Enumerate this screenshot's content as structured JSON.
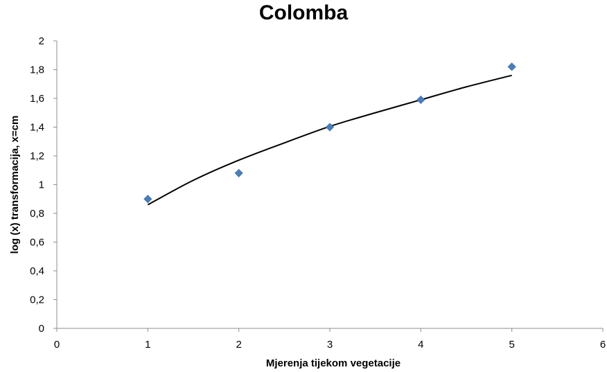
{
  "chart_data": {
    "type": "scatter",
    "title": "Colomba",
    "xlabel": "Mjerenja tijekom vegetacije",
    "ylabel": "log (x) transformacija, x=cm",
    "xlim": [
      0,
      6
    ],
    "ylim": [
      0,
      2
    ],
    "x_ticks": [
      "0",
      "1",
      "2",
      "3",
      "4",
      "5",
      "6"
    ],
    "y_ticks": [
      "0",
      "0,2",
      "0,4",
      "0,6",
      "0,8",
      "1",
      "1,2",
      "1,4",
      "1,6",
      "1,8",
      "2"
    ],
    "grid": false,
    "legend": "none",
    "series": [
      {
        "x": [
          1,
          2,
          3,
          4,
          5
        ],
        "y": [
          0.9,
          1.08,
          1.4,
          1.59,
          1.82
        ],
        "marker": "diamond",
        "color": "#4a7ebb"
      }
    ],
    "trendline": {
      "type": "logarithmic",
      "x": [
        1,
        1.5,
        2,
        2.5,
        3,
        3.5,
        4,
        4.5,
        5
      ],
      "y": [
        0.86,
        1.03,
        1.17,
        1.29,
        1.405,
        1.5,
        1.59,
        1.68,
        1.76
      ],
      "color": "#000000"
    }
  }
}
